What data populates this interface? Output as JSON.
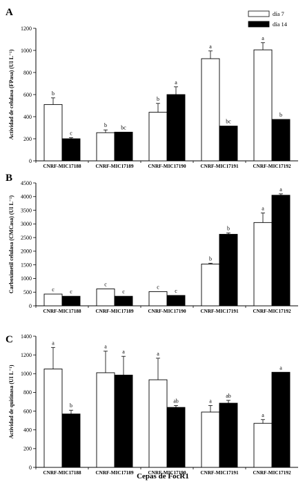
{
  "figure": {
    "xlabel": "Cepas de FocR1"
  },
  "chart_data": [
    {
      "type": "bar",
      "panel": "A",
      "ylabel": "Actividad de celulasa (FPasa) (UI L⁻¹)",
      "ylim": [
        0,
        1200
      ],
      "yticks": [
        0,
        200,
        400,
        600,
        800,
        1000,
        1200
      ],
      "categories": [
        "CNRF-MIC17188",
        "CNRF-MIC17189",
        "CNRF-MIC17190",
        "CNRF-MIC17191",
        "CNRF-MIC17192"
      ],
      "legend": {
        "position": "top-right"
      },
      "series": [
        {
          "name": "día 7",
          "color": "#ffffff",
          "values": [
            510,
            255,
            440,
            925,
            1005
          ],
          "errors": [
            60,
            25,
            80,
            70,
            65
          ],
          "labels": [
            "b",
            "b",
            "b",
            "a",
            "a"
          ]
        },
        {
          "name": "día 14",
          "color": "#000000",
          "values": [
            200,
            260,
            600,
            315,
            375
          ],
          "errors": [
            10,
            0,
            70,
            0,
            0
          ],
          "labels": [
            "c",
            "bc",
            "a",
            "bc",
            "b"
          ]
        }
      ]
    },
    {
      "type": "bar",
      "panel": "B",
      "ylabel": "Carboximetil celulasa (CMCasa) (UI L⁻¹)",
      "ylim": [
        0,
        4500
      ],
      "yticks": [
        0,
        500,
        1000,
        1500,
        2000,
        2500,
        3000,
        3500,
        4000,
        4500
      ],
      "categories": [
        "CNRF-MIC17188",
        "CNRF-MIC17189",
        "CNRF-MIC17190",
        "CNRF-MIC17191",
        "CNRF-MIC17192"
      ],
      "series": [
        {
          "name": "día 7",
          "color": "#ffffff",
          "values": [
            430,
            620,
            520,
            1530,
            3050
          ],
          "errors": [
            0,
            0,
            0,
            30,
            350
          ],
          "labels": [
            "c",
            "c",
            "c",
            "b",
            "a"
          ]
        },
        {
          "name": "día 14",
          "color": "#000000",
          "values": [
            350,
            350,
            380,
            2620,
            4050
          ],
          "errors": [
            0,
            0,
            0,
            50,
            50
          ],
          "labels": [
            "c",
            "c",
            "c",
            "b",
            "a"
          ]
        }
      ]
    },
    {
      "type": "bar",
      "panel": "C",
      "ylabel": "Actividad de quitinasa (UI L⁻¹)",
      "ylim": [
        0,
        1400
      ],
      "yticks": [
        0,
        200,
        400,
        600,
        800,
        1000,
        1200,
        1400
      ],
      "categories": [
        "CNRF-MIC17188",
        "CNRF-MIC17189",
        "CNRF-MIC17190",
        "CNRF-MIC17191",
        "CNRF-MIC17192"
      ],
      "series": [
        {
          "name": "día 7",
          "color": "#ffffff",
          "values": [
            1050,
            1010,
            935,
            590,
            470
          ],
          "errors": [
            230,
            230,
            230,
            70,
            40
          ],
          "labels": [
            "a",
            "a",
            "a",
            "a",
            "a"
          ]
        },
        {
          "name": "día 14",
          "color": "#000000",
          "values": [
            570,
            985,
            640,
            685,
            1015
          ],
          "errors": [
            40,
            200,
            20,
            30,
            0
          ],
          "labels": [
            "b",
            "a",
            "ab",
            "ab",
            "a"
          ]
        }
      ]
    }
  ]
}
